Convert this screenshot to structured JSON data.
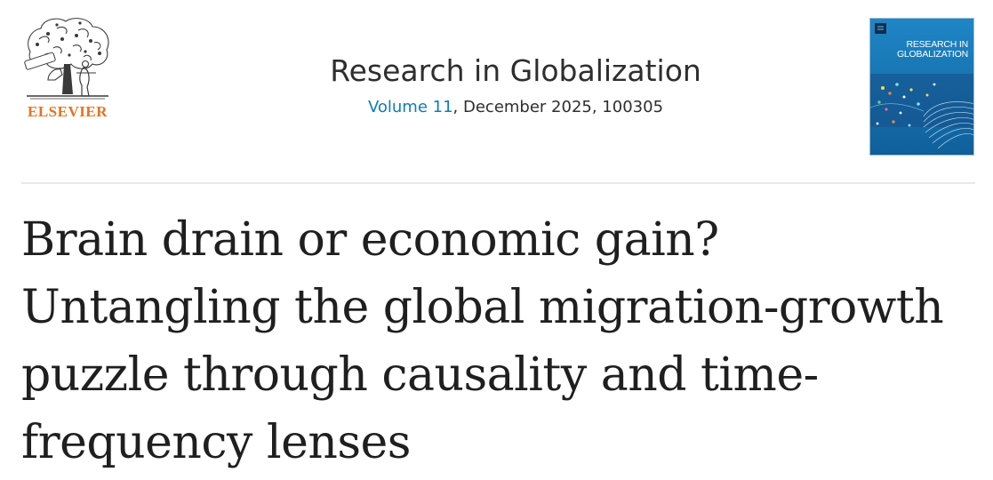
{
  "publisher": {
    "name": "ELSEVIER",
    "brand_color": "#e9711c",
    "logo_icon": "elsevier-tree-icon"
  },
  "journal": {
    "title": "Research in Globalization",
    "volume_label": "Volume 11",
    "issue_info": ", December 2025, 100305",
    "link_color": "#0c7dbb"
  },
  "cover": {
    "title_line1": "RESEARCH IN",
    "title_line2": "GLOBALIZATION",
    "background_color": "#1677b5"
  },
  "article": {
    "title": "Brain drain or economic gain? Untangling the global migration-growth puzzle through causality and time-frequency lenses"
  }
}
